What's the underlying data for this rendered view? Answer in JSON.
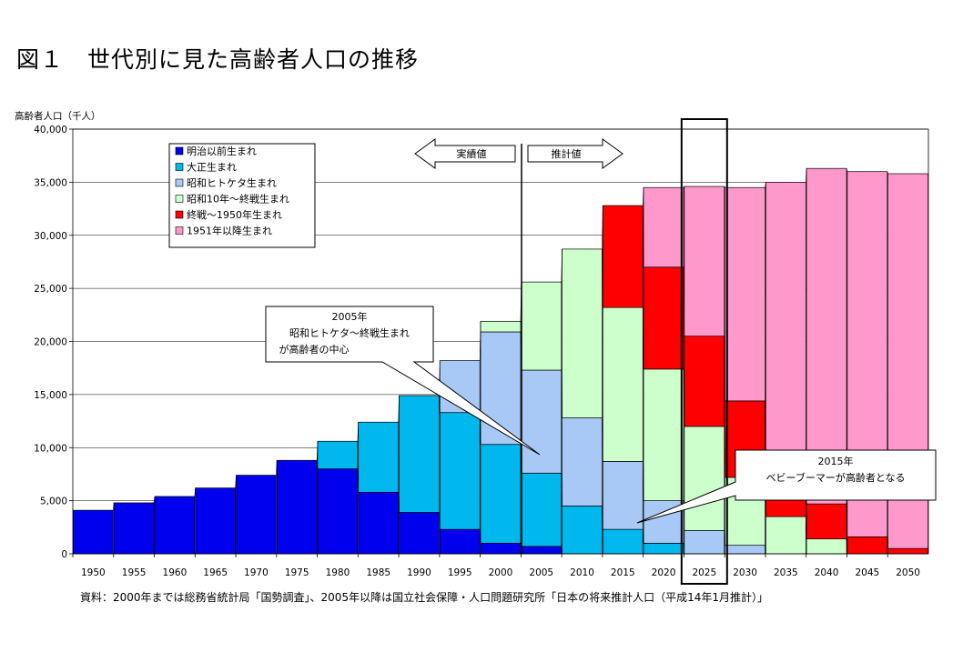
{
  "title": "図１　世代別に見た高齢者人口の推移",
  "source": "資料：2000年までは総務省統計局「国勢調査」、2005年以降は国立社会保障・人口問題研究所「日本の将来推計人口（平成14年1月推計）」",
  "colors": {
    "meiji": "#0000ee",
    "taisho": "#00b8ee",
    "showa_hitoketa": "#a8c8f5",
    "showa10": "#ccffcc",
    "shusen_1950": "#ff0000",
    "after_1951": "#ff99cc"
  },
  "annotations": {
    "actual": "実績値",
    "projection": "推計値",
    "note2005": [
      "2005年",
      "昭和ヒトケタ～終戦生まれ",
      "が高齢者の中心"
    ],
    "note2015": [
      "2015年",
      "ベビーブーマーが高齢者となる"
    ]
  },
  "chart_data": {
    "type": "bar",
    "stacked": true,
    "ylabel": "高齢者人口（千人）",
    "ylim": [
      0,
      40000
    ],
    "yticks": [
      0,
      5000,
      10000,
      15000,
      20000,
      25000,
      30000,
      35000,
      40000
    ],
    "ytick_labels": [
      "0",
      "5,000",
      "10,000",
      "15,000",
      "20,000",
      "25,000",
      "30,000",
      "35,000",
      "40,000"
    ],
    "grid": true,
    "legend_position": "top-left",
    "highlight_category": "2025",
    "categories": [
      "1950",
      "1955",
      "1960",
      "1965",
      "1970",
      "1975",
      "1980",
      "1985",
      "1990",
      "1995",
      "2000",
      "2005",
      "2010",
      "2015",
      "2020",
      "2025",
      "2030",
      "2035",
      "2040",
      "2045",
      "2050"
    ],
    "series": [
      {
        "name": "明治以前生まれ",
        "color_key": "meiji",
        "values": [
          4100,
          4800,
          5400,
          6200,
          7400,
          8800,
          8000,
          5800,
          3900,
          2300,
          1000,
          700,
          0,
          0,
          0,
          0,
          0,
          0,
          0,
          0,
          0
        ]
      },
      {
        "name": "大正生まれ",
        "color_key": "taisho",
        "values": [
          0,
          0,
          0,
          0,
          0,
          0,
          2600,
          6600,
          11000,
          11000,
          9300,
          6900,
          4500,
          2300,
          1000,
          0,
          0,
          0,
          0,
          0,
          0
        ]
      },
      {
        "name": "昭和ヒトケタ生まれ",
        "color_key": "showa_hitoketa",
        "values": [
          0,
          0,
          0,
          0,
          0,
          0,
          0,
          0,
          0,
          4900,
          10600,
          9700,
          8300,
          6400,
          4000,
          2200,
          800,
          0,
          0,
          0,
          0
        ]
      },
      {
        "name": "昭和10年～終戦生まれ",
        "color_key": "showa10",
        "values": [
          0,
          0,
          0,
          0,
          0,
          0,
          0,
          0,
          0,
          0,
          1000,
          8300,
          15900,
          14500,
          12400,
          9800,
          6400,
          3500,
          1400,
          0,
          0
        ]
      },
      {
        "name": "終戦～1950年生まれ",
        "color_key": "shusen_1950",
        "values": [
          0,
          0,
          0,
          0,
          0,
          0,
          0,
          0,
          0,
          0,
          0,
          0,
          0,
          9600,
          9600,
          8500,
          7200,
          5500,
          3300,
          1600,
          500
        ]
      },
      {
        "name": "1951年以降生まれ",
        "color_key": "after_1951",
        "values": [
          0,
          0,
          0,
          0,
          0,
          0,
          0,
          0,
          0,
          0,
          0,
          0,
          0,
          0,
          7500,
          14100,
          20100,
          26000,
          31600,
          34400,
          35300
        ]
      }
    ]
  }
}
